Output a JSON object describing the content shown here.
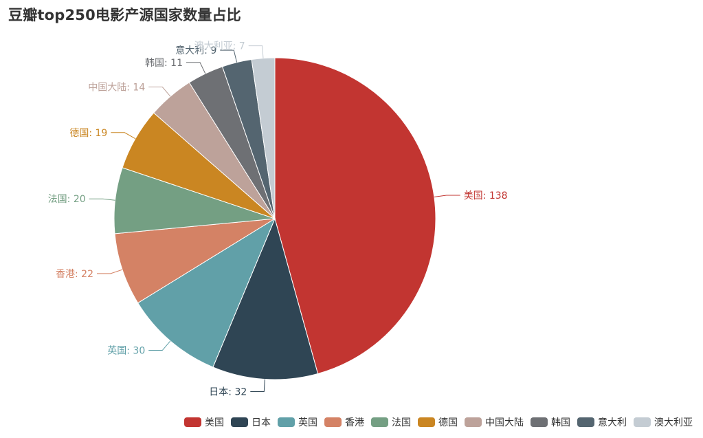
{
  "chart_data": {
    "type": "pie",
    "title": "豆瓣top250电影产源国家数量占比",
    "legend_position": "bottom-right",
    "slices": [
      {
        "name": "美国",
        "value": 138,
        "color": "#c23531",
        "label": "美国: 138"
      },
      {
        "name": "日本",
        "value": 32,
        "color": "#2f4554",
        "label": "日本: 32"
      },
      {
        "name": "英国",
        "value": 30,
        "color": "#61a0a8",
        "label": "英国: 30"
      },
      {
        "name": "香港",
        "value": 22,
        "color": "#d48265",
        "label": "香港: 22"
      },
      {
        "name": "法国",
        "value": 20,
        "color": "#749f83",
        "label": "法国: 20"
      },
      {
        "name": "德国",
        "value": 19,
        "color": "#ca8622",
        "label": "德国: 19"
      },
      {
        "name": "中国大陆",
        "value": 14,
        "color": "#bda29a",
        "label": "中国大陆: 14"
      },
      {
        "name": "韩国",
        "value": 11,
        "color": "#6e7074",
        "label": "韩国: 11"
      },
      {
        "name": "意大利",
        "value": 9,
        "color": "#546570",
        "label": "意大利: 9"
      },
      {
        "name": "澳大利亚",
        "value": 7,
        "color": "#c4ccd3",
        "label": "澳大利亚: 7"
      }
    ]
  }
}
